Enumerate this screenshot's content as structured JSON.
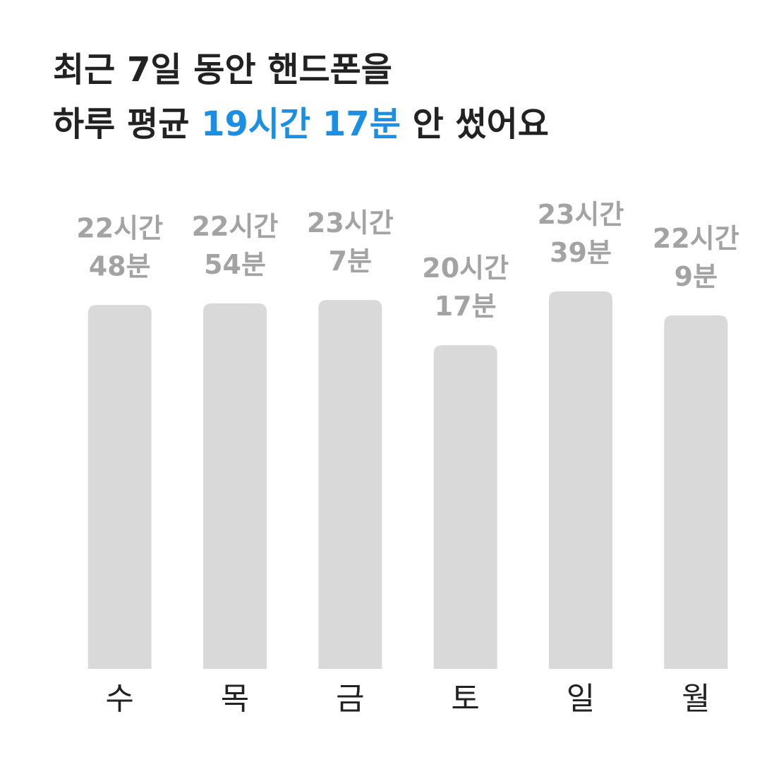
{
  "chart_data": {
    "type": "bar",
    "title": "최근 7일 동안 핸드폰을",
    "subtitle": [
      "하루 평균",
      "19시간 17분",
      "안 썼어요"
    ],
    "categories": [
      "수",
      "목",
      "금",
      "토",
      "일",
      "월"
    ],
    "values": [
      1368,
      1374,
      1387,
      1217,
      1419,
      1329
    ],
    "value_labels": [
      [
        "22시간",
        "48분"
      ],
      [
        "22시간",
        "54분"
      ],
      [
        "23시간",
        "7분"
      ],
      [
        "20시간",
        "17분"
      ],
      [
        "23시간",
        "39분"
      ],
      [
        "22시간",
        "9분"
      ]
    ],
    "color": "#d9d9d9",
    "highlight_color": "#1a8fe3"
  }
}
